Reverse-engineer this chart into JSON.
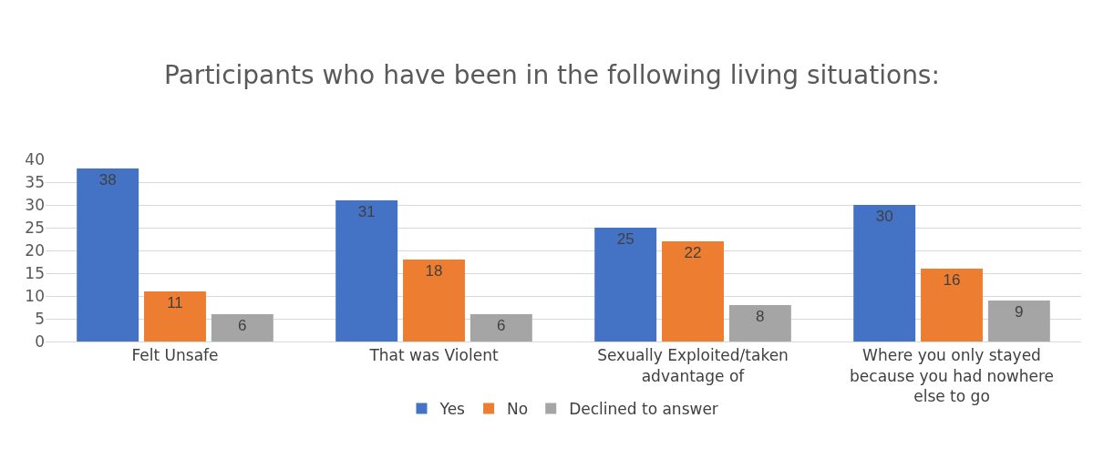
{
  "chart_data": {
    "type": "bar",
    "title": "Participants who have been in the following living situations:",
    "categories": [
      "Felt Unsafe",
      "That was Violent",
      "Sexually Exploited/taken advantage of",
      "Where you only stayed because you had nowhere else to go"
    ],
    "series": [
      {
        "name": "Yes",
        "color": "#4472c4",
        "values": [
          38,
          31,
          25,
          30
        ]
      },
      {
        "name": "No",
        "color": "#ed7d31",
        "values": [
          11,
          18,
          22,
          16
        ]
      },
      {
        "name": "Declined to answer",
        "color": "#a5a5a5",
        "values": [
          6,
          6,
          8,
          9
        ]
      }
    ],
    "ylim": [
      0,
      40
    ],
    "yticks": [
      0,
      5,
      10,
      15,
      20,
      25,
      30,
      35,
      40
    ],
    "grid": "y",
    "legend": "bottom",
    "data_labels": true
  }
}
